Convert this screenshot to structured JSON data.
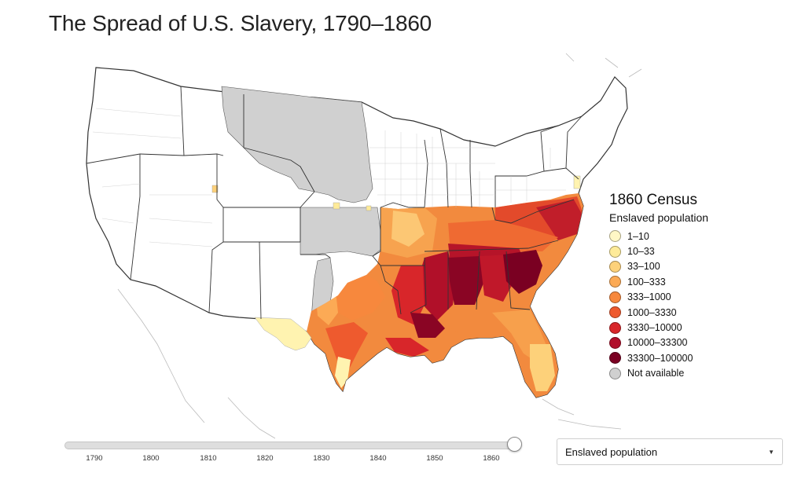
{
  "title": "The Spread of U.S. Slavery, 1790–1860",
  "legend": {
    "title": "1860 Census",
    "subtitle": "Enslaved population",
    "items": [
      {
        "label": "1–10",
        "color": "#fff7c6"
      },
      {
        "label": "10–33",
        "color": "#feeb99"
      },
      {
        "label": "33–100",
        "color": "#fdd17a"
      },
      {
        "label": "100–333",
        "color": "#fcaa55"
      },
      {
        "label": "333–1000",
        "color": "#f7883d"
      },
      {
        "label": "1000–3330",
        "color": "#ee5a2e"
      },
      {
        "label": "3330–10000",
        "color": "#d8262a"
      },
      {
        "label": "10000–33300",
        "color": "#b1102b"
      },
      {
        "label": "33300–100000",
        "color": "#7a0022"
      },
      {
        "label": "Not available",
        "color": "#d0d0d0"
      }
    ]
  },
  "slider": {
    "ticks": [
      "1790",
      "1800",
      "1810",
      "1820",
      "1830",
      "1840",
      "1850",
      "1860"
    ],
    "value": "1860"
  },
  "select": {
    "value": "Enslaved population",
    "options": [
      "Enslaved population"
    ]
  },
  "icons": {
    "dropdown": "caret-down-icon",
    "slider": "slider-handle-icon"
  }
}
